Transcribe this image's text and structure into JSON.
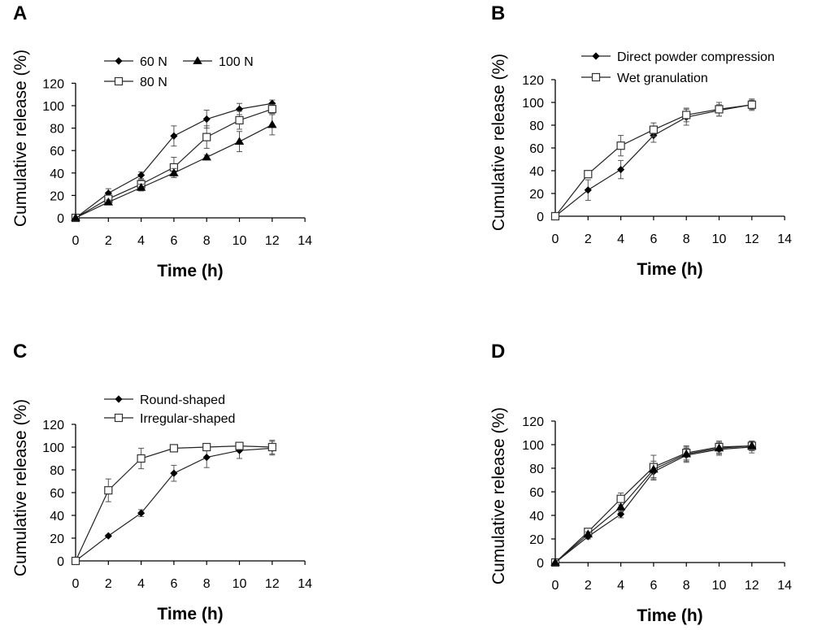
{
  "chart_data": [
    {
      "panel": "A",
      "type": "line",
      "xlabel": "Time (h)",
      "ylabel": "Cumulative release (%)",
      "xlim": [
        0,
        14
      ],
      "ylim": [
        0,
        120
      ],
      "xticks": [
        0,
        2,
        4,
        6,
        8,
        10,
        12,
        14
      ],
      "yticks": [
        0,
        20,
        40,
        60,
        80,
        100,
        120
      ],
      "legend_rows": [
        [
          0,
          2
        ],
        [
          1
        ]
      ],
      "series": [
        {
          "name": "60 N",
          "marker": "diamond",
          "x": [
            0,
            2,
            4,
            6,
            8,
            10,
            12
          ],
          "values": [
            0,
            22,
            38,
            73,
            88,
            97,
            102
          ],
          "errors": [
            0,
            4,
            3,
            9,
            8,
            5,
            3
          ]
        },
        {
          "name": "80 N",
          "marker": "square",
          "x": [
            0,
            2,
            4,
            6,
            8,
            10,
            12
          ],
          "values": [
            0,
            17,
            30,
            45,
            72,
            87,
            97
          ],
          "errors": [
            0,
            3,
            4,
            9,
            10,
            8,
            4
          ]
        },
        {
          "name": "100 N",
          "marker": "triangle",
          "x": [
            0,
            2,
            4,
            6,
            8,
            10,
            12
          ],
          "values": [
            0,
            14,
            27,
            40,
            54,
            68,
            83
          ],
          "errors": [
            0,
            2,
            3,
            4,
            2,
            9,
            9
          ]
        }
      ]
    },
    {
      "panel": "B",
      "type": "line",
      "xlabel": "Time (h)",
      "ylabel": "Cumulative release (%)",
      "xlim": [
        0,
        14
      ],
      "ylim": [
        0,
        120
      ],
      "xticks": [
        0,
        2,
        4,
        6,
        8,
        10,
        12,
        14
      ],
      "yticks": [
        0,
        20,
        40,
        60,
        80,
        100,
        120
      ],
      "legend_rows": [
        [
          0
        ],
        [
          1
        ]
      ],
      "series": [
        {
          "name": "Direct powder compression",
          "marker": "diamond",
          "x": [
            0,
            2,
            4,
            6,
            8,
            10,
            12
          ],
          "values": [
            0,
            23,
            41,
            71,
            87,
            93,
            98
          ],
          "errors": [
            0,
            9,
            8,
            6,
            7,
            5,
            4
          ]
        },
        {
          "name": "Wet granulation",
          "marker": "square",
          "x": [
            0,
            2,
            4,
            6,
            8,
            10,
            12
          ],
          "values": [
            0,
            37,
            62,
            76,
            89,
            94,
            98
          ],
          "errors": [
            0,
            3,
            9,
            6,
            6,
            6,
            5
          ]
        }
      ]
    },
    {
      "panel": "C",
      "type": "line",
      "xlabel": "Time (h)",
      "ylabel": "Cumulative release (%)",
      "xlim": [
        0,
        14
      ],
      "ylim": [
        0,
        120
      ],
      "xticks": [
        0,
        2,
        4,
        6,
        8,
        10,
        12,
        14
      ],
      "yticks": [
        0,
        20,
        40,
        60,
        80,
        100,
        120
      ],
      "legend_rows": [
        [
          0
        ],
        [
          1
        ]
      ],
      "series": [
        {
          "name": "Round-shaped",
          "marker": "diamond",
          "x": [
            0,
            2,
            4,
            6,
            8,
            10,
            12
          ],
          "values": [
            0,
            22,
            42,
            77,
            91,
            97,
            99
          ],
          "errors": [
            0,
            1,
            3,
            7,
            9,
            7,
            6
          ]
        },
        {
          "name": "Irregular-shaped",
          "marker": "square",
          "x": [
            0,
            2,
            4,
            6,
            8,
            10,
            12
          ],
          "values": [
            0,
            62,
            90,
            99,
            100,
            101,
            100
          ],
          "errors": [
            0,
            10,
            9,
            2,
            2,
            3,
            6
          ]
        }
      ]
    },
    {
      "panel": "D",
      "type": "line",
      "xlabel": "Time (h)",
      "ylabel": "Cumulative release (%)",
      "xlim": [
        0,
        14
      ],
      "ylim": [
        0,
        120
      ],
      "xticks": [
        0,
        2,
        4,
        6,
        8,
        10,
        12,
        14
      ],
      "yticks": [
        0,
        20,
        40,
        60,
        80,
        100,
        120
      ],
      "legend_rows": [],
      "series": [
        {
          "marker": "diamond",
          "x": [
            0,
            2,
            4,
            6,
            8,
            10,
            12
          ],
          "values": [
            0,
            22,
            41,
            77,
            91,
            96,
            98
          ],
          "errors": [
            0,
            2,
            3,
            7,
            6,
            5,
            5
          ]
        },
        {
          "marker": "square",
          "x": [
            0,
            2,
            4,
            6,
            8,
            10,
            12
          ],
          "values": [
            0,
            26,
            54,
            81,
            93,
            98,
            99
          ],
          "errors": [
            0,
            2,
            5,
            10,
            6,
            5,
            4
          ]
        },
        {
          "marker": "triangle",
          "x": [
            0,
            2,
            4,
            6,
            8,
            10,
            12
          ],
          "values": [
            0,
            24,
            47,
            79,
            92,
            97,
            99
          ],
          "errors": [
            0,
            2,
            4,
            7,
            6,
            5,
            4
          ]
        }
      ]
    }
  ]
}
